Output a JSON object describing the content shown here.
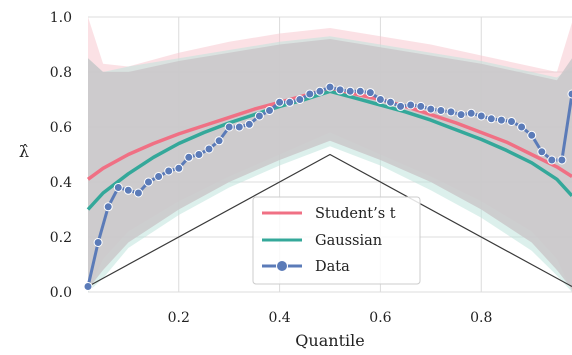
{
  "chart_data": {
    "type": "line",
    "xlabel": "Quantile",
    "ylabel": "λ̂",
    "xlim": [
      0.02,
      0.98
    ],
    "ylim": [
      0.0,
      1.0
    ],
    "xticks": [
      0.2,
      0.4,
      0.6,
      0.8
    ],
    "xtick_labels": [
      "0.2",
      "0.4",
      "0.6",
      "0.8"
    ],
    "yticks": [
      0.0,
      0.2,
      0.4,
      0.6,
      0.8,
      1.0
    ],
    "ytick_labels": [
      "0.0",
      "0.2",
      "0.4",
      "0.6",
      "0.8",
      "1.0"
    ],
    "grid": true,
    "legend_position": "lower-center",
    "colors": {
      "student_t": "#f07084",
      "gaussian": "#34a89a",
      "data": "#5b7bb8",
      "reference": "#3a3a3a",
      "band_gray": "#c9c6c8",
      "band_pink": "#f7c9cf",
      "band_teal": "#bfe3dc",
      "background": "#ffffff",
      "grid": "#dcdcdc"
    },
    "series": [
      {
        "name": "Student’s t",
        "color": "#f07084",
        "x": [
          0.02,
          0.05,
          0.1,
          0.15,
          0.2,
          0.25,
          0.3,
          0.35,
          0.4,
          0.45,
          0.5,
          0.55,
          0.6,
          0.65,
          0.7,
          0.75,
          0.8,
          0.85,
          0.9,
          0.95,
          0.98
        ],
        "y": [
          0.41,
          0.45,
          0.5,
          0.54,
          0.575,
          0.605,
          0.635,
          0.665,
          0.69,
          0.715,
          0.74,
          0.72,
          0.7,
          0.675,
          0.645,
          0.615,
          0.58,
          0.545,
          0.5,
          0.455,
          0.42
        ]
      },
      {
        "name": "Gaussian",
        "color": "#34a89a",
        "x": [
          0.02,
          0.05,
          0.1,
          0.15,
          0.2,
          0.25,
          0.3,
          0.35,
          0.4,
          0.45,
          0.5,
          0.55,
          0.6,
          0.65,
          0.7,
          0.75,
          0.8,
          0.85,
          0.9,
          0.95,
          0.98
        ],
        "y": [
          0.3,
          0.36,
          0.43,
          0.49,
          0.54,
          0.58,
          0.615,
          0.645,
          0.675,
          0.7,
          0.73,
          0.705,
          0.68,
          0.655,
          0.625,
          0.59,
          0.555,
          0.515,
          0.47,
          0.41,
          0.35
        ]
      },
      {
        "name": "Data",
        "color": "#5b7bb8",
        "x": [
          0.02,
          0.04,
          0.06,
          0.08,
          0.1,
          0.12,
          0.14,
          0.16,
          0.18,
          0.2,
          0.22,
          0.24,
          0.26,
          0.28,
          0.3,
          0.32,
          0.34,
          0.36,
          0.38,
          0.4,
          0.42,
          0.44,
          0.46,
          0.48,
          0.5,
          0.52,
          0.54,
          0.56,
          0.58,
          0.6,
          0.62,
          0.64,
          0.66,
          0.68,
          0.7,
          0.72,
          0.74,
          0.76,
          0.78,
          0.8,
          0.82,
          0.84,
          0.86,
          0.88,
          0.9,
          0.92,
          0.94,
          0.96,
          0.98
        ],
        "y": [
          0.02,
          0.18,
          0.31,
          0.38,
          0.37,
          0.36,
          0.4,
          0.42,
          0.44,
          0.45,
          0.49,
          0.5,
          0.52,
          0.55,
          0.6,
          0.6,
          0.61,
          0.64,
          0.66,
          0.69,
          0.69,
          0.7,
          0.72,
          0.73,
          0.745,
          0.735,
          0.73,
          0.73,
          0.725,
          0.7,
          0.69,
          0.675,
          0.68,
          0.675,
          0.665,
          0.66,
          0.655,
          0.645,
          0.65,
          0.64,
          0.63,
          0.625,
          0.62,
          0.6,
          0.57,
          0.51,
          0.48,
          0.48,
          0.72
        ]
      },
      {
        "name": "",
        "color": "#3a3a3a",
        "x": [
          0.02,
          0.5,
          0.98
        ],
        "y": [
          0.02,
          0.5,
          0.02
        ]
      }
    ],
    "bands": [
      {
        "color": "#f7c9cf",
        "x": [
          0.02,
          0.05,
          0.1,
          0.2,
          0.3,
          0.4,
          0.5,
          0.6,
          0.7,
          0.8,
          0.9,
          0.95,
          0.98
        ],
        "lower": [
          0.0,
          0.12,
          0.22,
          0.33,
          0.42,
          0.5,
          0.58,
          0.5,
          0.42,
          0.33,
          0.22,
          0.12,
          0.0
        ],
        "upper": [
          1.0,
          0.83,
          0.82,
          0.87,
          0.91,
          0.94,
          0.96,
          0.93,
          0.9,
          0.86,
          0.82,
          0.8,
          0.98
        ]
      },
      {
        "color": "#bfe3dc",
        "x": [
          0.02,
          0.05,
          0.1,
          0.2,
          0.3,
          0.4,
          0.5,
          0.6,
          0.7,
          0.8,
          0.9,
          0.95,
          0.98
        ],
        "lower": [
          0.0,
          0.05,
          0.16,
          0.28,
          0.38,
          0.46,
          0.53,
          0.46,
          0.37,
          0.27,
          0.15,
          0.06,
          0.0
        ],
        "upper": [
          0.85,
          0.8,
          0.82,
          0.85,
          0.88,
          0.91,
          0.93,
          0.9,
          0.87,
          0.84,
          0.8,
          0.78,
          0.82
        ]
      },
      {
        "color": "#c9c6c8",
        "x": [
          0.02,
          0.05,
          0.1,
          0.2,
          0.3,
          0.4,
          0.5,
          0.6,
          0.7,
          0.8,
          0.9,
          0.95,
          0.98
        ],
        "lower": [
          0.01,
          0.08,
          0.18,
          0.3,
          0.4,
          0.48,
          0.55,
          0.48,
          0.4,
          0.3,
          0.18,
          0.08,
          0.01
        ],
        "upper": [
          0.85,
          0.8,
          0.8,
          0.84,
          0.87,
          0.9,
          0.92,
          0.89,
          0.86,
          0.83,
          0.79,
          0.77,
          0.85
        ]
      }
    ]
  }
}
